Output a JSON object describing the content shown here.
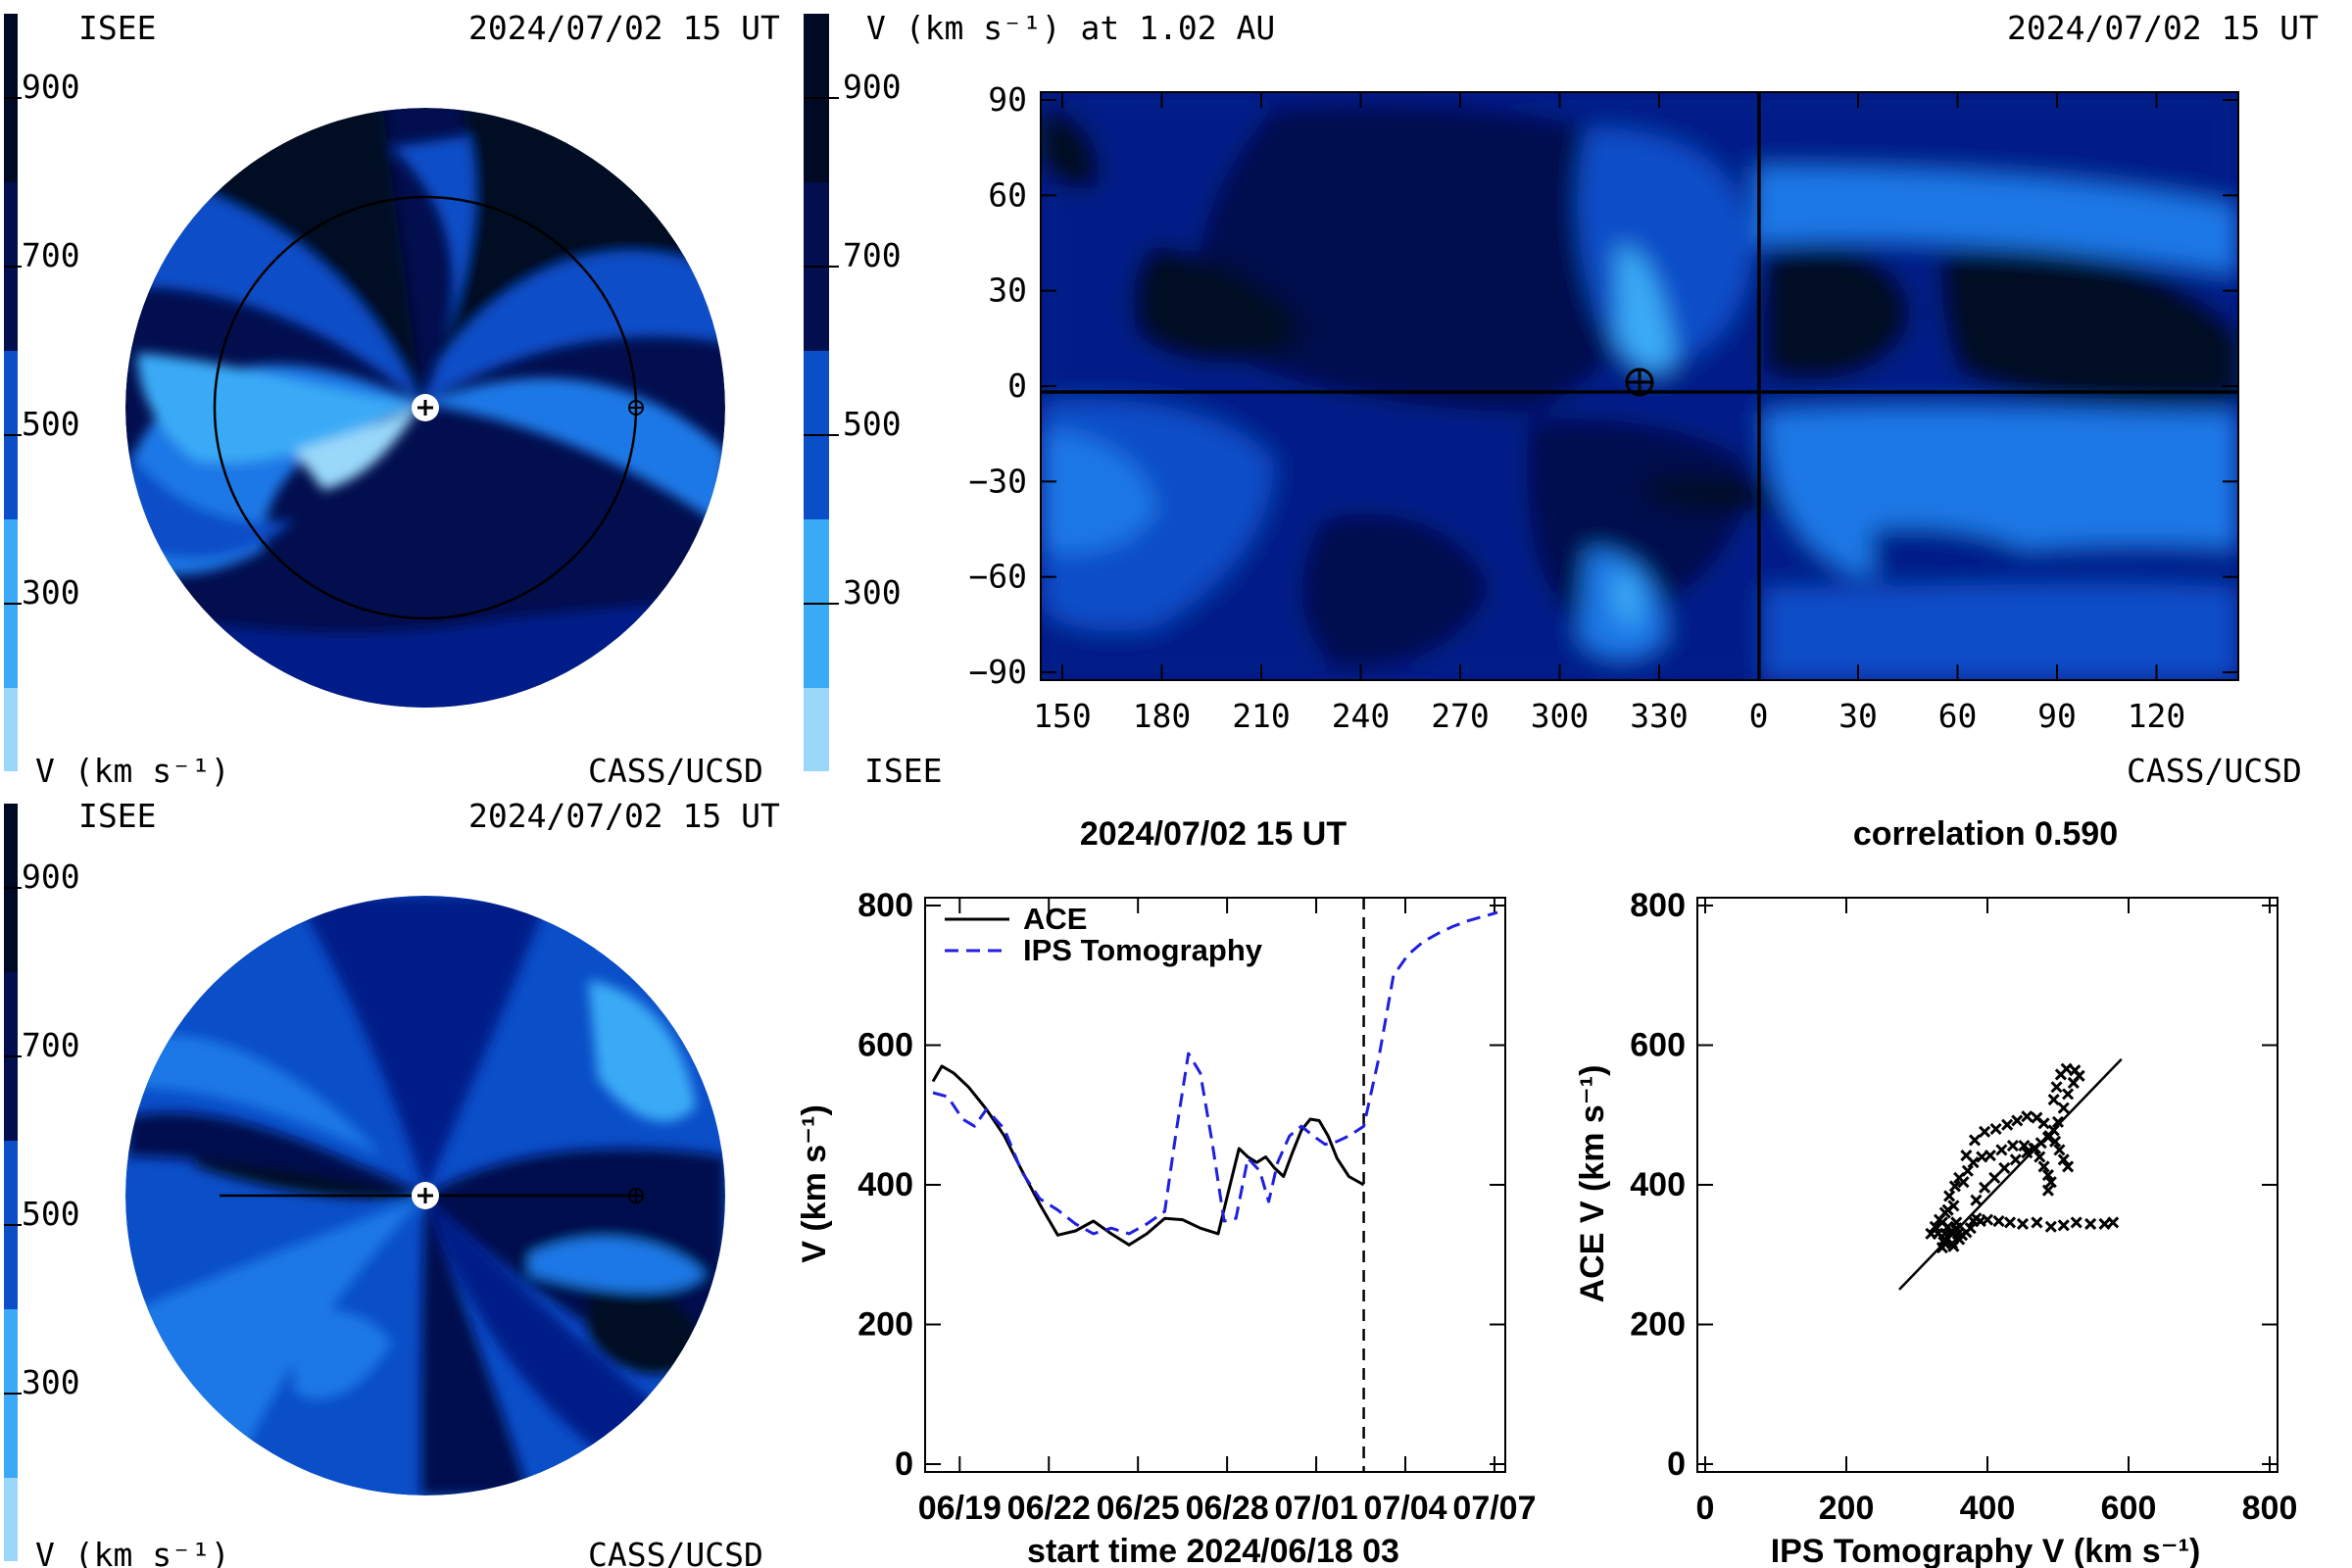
{
  "panels": {
    "helio_top": {
      "label_left": "ISEE",
      "timestamp": "2024/07/02 15 UT",
      "colorbar_ticks": [
        "900",
        "700",
        "500",
        "300"
      ],
      "unit_label": "V (km s⁻¹)",
      "credit": "CASS/UCSD"
    },
    "synoptic": {
      "title_left": "V (km s⁻¹) at 1.02 AU",
      "timestamp": "2024/07/02 15 UT",
      "colorbar_ticks": [
        "900",
        "700",
        "500",
        "300"
      ],
      "label_left": "ISEE",
      "credit": "CASS/UCSD",
      "y_ticks": [
        "90",
        "60",
        "30",
        "0",
        "−30",
        "−60",
        "−90"
      ],
      "x_ticks": [
        "150",
        "180",
        "210",
        "240",
        "270",
        "300",
        "330",
        "0",
        "30",
        "60",
        "90",
        "120"
      ]
    },
    "helio_bottom": {
      "label_left": "ISEE",
      "timestamp": "2024/07/02 15 UT",
      "colorbar_ticks": [
        "900",
        "700",
        "500",
        "300"
      ],
      "unit_label": "V (km s⁻¹)",
      "credit": "CASS/UCSD"
    },
    "timeseries": {
      "title": "2024/07/02 15 UT",
      "ylabel": "V (km s⁻¹)",
      "xlabel": "start time 2024/06/18 03",
      "y_ticks": [
        "800",
        "600",
        "400",
        "200",
        "0"
      ],
      "x_ticks": [
        "06/19",
        "06/22",
        "06/25",
        "06/28",
        "07/01",
        "07/04",
        "07/07"
      ],
      "legend": [
        "ACE",
        "IPS Tomography"
      ]
    },
    "scatter": {
      "title": "correlation 0.590",
      "ylabel": "ACE V (km s⁻¹)",
      "xlabel": "IPS Tomography V (km s⁻¹)",
      "y_ticks": [
        "800",
        "600",
        "400",
        "200",
        "0"
      ],
      "x_ticks": [
        "0",
        "200",
        "400",
        "600",
        "800"
      ]
    }
  },
  "colors": {
    "level_900": "#000a24",
    "level_700": "#020e4e",
    "level_600": "#031a88",
    "level_500": "#0a4ec8",
    "level_400": "#1a78e6",
    "level_300": "#3aaaf6",
    "level_200": "#9ad8fa",
    "ace_line": "#000000",
    "ips_line": "#1f1fe0"
  },
  "chart_data": [
    {
      "type": "line",
      "title": "2024/07/02 15 UT",
      "xlabel": "start time 2024/06/18 03",
      "ylabel": "V (km s⁻¹)",
      "xlim": [
        "06/18",
        "07/07"
      ],
      "ylim": [
        0,
        800
      ],
      "x_unit": "days since start time",
      "legend_position": "top-left",
      "now_marker_day": 14.5,
      "series": [
        {
          "name": "ACE",
          "style": "solid",
          "x": [
            0.0,
            0.3,
            0.7,
            1.2,
            1.8,
            2.4,
            3.0,
            3.6,
            4.2,
            4.8,
            5.4,
            6.0,
            6.6,
            7.2,
            7.8,
            8.4,
            9.0,
            9.6,
            10.0,
            10.3,
            10.6,
            10.9,
            11.2,
            11.5,
            11.8,
            12.1,
            12.4,
            12.7,
            13.0,
            13.3,
            13.6,
            14.0,
            14.5
          ],
          "y": [
            548,
            570,
            560,
            540,
            508,
            470,
            420,
            372,
            328,
            334,
            348,
            330,
            314,
            330,
            352,
            350,
            338,
            330,
            400,
            452,
            440,
            432,
            440,
            424,
            412,
            446,
            478,
            494,
            492,
            470,
            438,
            412,
            400
          ]
        },
        {
          "name": "IPS Tomography",
          "style": "dashed",
          "x": [
            0.0,
            0.5,
            1.0,
            1.4,
            1.8,
            2.4,
            3.0,
            3.6,
            4.2,
            4.8,
            5.4,
            6.0,
            6.6,
            7.2,
            7.8,
            8.2,
            8.6,
            9.0,
            9.4,
            9.8,
            10.2,
            10.6,
            11.0,
            11.3,
            11.6,
            12.0,
            12.4,
            12.8,
            13.2,
            13.6,
            14.0,
            14.5,
            15.0,
            15.5,
            16.0,
            16.5,
            17.0,
            17.5,
            18.0,
            18.5,
            19.0
          ],
          "y": [
            532,
            526,
            494,
            484,
            508,
            480,
            418,
            380,
            364,
            344,
            330,
            338,
            330,
            344,
            362,
            480,
            588,
            560,
            460,
            348,
            352,
            438,
            420,
            376,
            432,
            470,
            484,
            470,
            458,
            462,
            470,
            484,
            580,
            700,
            730,
            748,
            760,
            770,
            778,
            784,
            790
          ]
        }
      ]
    },
    {
      "type": "scatter",
      "title": "correlation 0.590",
      "xlabel": "IPS Tomography V (km s⁻¹)",
      "ylabel": "ACE V (km s⁻¹)",
      "xlim": [
        0,
        800
      ],
      "ylim": [
        0,
        800
      ],
      "fit_line": [
        [
          275,
          250
        ],
        [
          590,
          580
        ]
      ],
      "points": [
        [
          330,
          330
        ],
        [
          340,
          322
        ],
        [
          348,
          332
        ],
        [
          356,
          338
        ],
        [
          364,
          328
        ],
        [
          338,
          318
        ],
        [
          352,
          312
        ],
        [
          360,
          322
        ],
        [
          344,
          340
        ],
        [
          336,
          346
        ],
        [
          370,
          332
        ],
        [
          356,
          346
        ],
        [
          376,
          338
        ],
        [
          340,
          330
        ],
        [
          380,
          348
        ],
        [
          384,
          352
        ],
        [
          390,
          348
        ],
        [
          400,
          350
        ],
        [
          416,
          348
        ],
        [
          432,
          346
        ],
        [
          450,
          344
        ],
        [
          470,
          346
        ],
        [
          490,
          340
        ],
        [
          508,
          342
        ],
        [
          526,
          346
        ],
        [
          546,
          344
        ],
        [
          566,
          344
        ],
        [
          578,
          346
        ],
        [
          384,
          378
        ],
        [
          396,
          396
        ],
        [
          410,
          410
        ],
        [
          424,
          424
        ],
        [
          440,
          436
        ],
        [
          456,
          446
        ],
        [
          468,
          452
        ],
        [
          476,
          460
        ],
        [
          486,
          468
        ],
        [
          494,
          478
        ],
        [
          500,
          490
        ],
        [
          508,
          510
        ],
        [
          514,
          530
        ],
        [
          522,
          546
        ],
        [
          530,
          556
        ],
        [
          524,
          564
        ],
        [
          512,
          566
        ],
        [
          504,
          558
        ],
        [
          498,
          540
        ],
        [
          494,
          522
        ],
        [
          366,
          404
        ],
        [
          372,
          420
        ],
        [
          380,
          432
        ],
        [
          392,
          440
        ],
        [
          404,
          442
        ],
        [
          420,
          450
        ],
        [
          436,
          456
        ],
        [
          452,
          456
        ],
        [
          466,
          452
        ],
        [
          474,
          440
        ],
        [
          480,
          426
        ],
        [
          486,
          414
        ],
        [
          490,
          404
        ],
        [
          486,
          392
        ],
        [
          352,
          370
        ],
        [
          346,
          384
        ],
        [
          354,
          398
        ],
        [
          360,
          410
        ],
        [
          370,
          442
        ],
        [
          382,
          464
        ],
        [
          396,
          476
        ],
        [
          412,
          480
        ],
        [
          428,
          486
        ],
        [
          442,
          492
        ],
        [
          456,
          498
        ],
        [
          470,
          496
        ],
        [
          480,
          488
        ],
        [
          488,
          470
        ],
        [
          496,
          462
        ],
        [
          502,
          450
        ],
        [
          508,
          436
        ],
        [
          514,
          426
        ],
        [
          332,
          350
        ],
        [
          326,
          340
        ],
        [
          320,
          330
        ],
        [
          340,
          360
        ],
        [
          344,
          364
        ],
        [
          336,
          310
        ],
        [
          350,
          316
        ],
        [
          358,
          330
        ]
      ]
    }
  ]
}
